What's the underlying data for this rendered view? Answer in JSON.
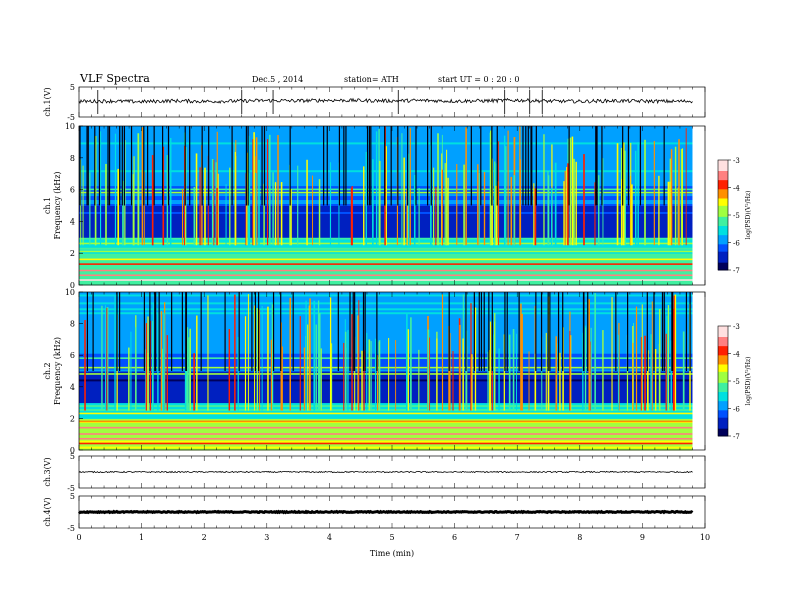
{
  "header": {
    "title": "VLF Spectra",
    "date": "Dec.5 , 2014",
    "station": "station= ATH",
    "start": "start UT = 0 : 20 : 0"
  },
  "chart_data": [
    {
      "type": "line",
      "ylabel": "ch.1(V)",
      "ylim": [
        -5,
        5
      ],
      "yticks": [
        "5",
        "-5"
      ],
      "x": [
        0,
        0.5,
        1,
        1.5,
        2,
        2.5,
        3,
        3.5,
        4,
        4.5,
        5,
        5.5,
        6,
        6.5,
        7,
        7.5,
        8,
        8.5,
        9,
        9.5,
        9.8
      ],
      "values": [
        0.2,
        0.3,
        0.1,
        0.4,
        0.2,
        0.3,
        0.5,
        0.4,
        0.6,
        0.5,
        0.4,
        0.5,
        0.3,
        0.4,
        0.6,
        0.3,
        0.2,
        0.4,
        0.3,
        0.2,
        0.3
      ],
      "color": "#000000"
    },
    {
      "type": "heatmap",
      "channel": "ch.1",
      "ylabel": "Frequency (kHz)",
      "ylim": [
        0,
        10
      ],
      "yticks": [
        "0",
        "2",
        "4",
        "6",
        "8",
        "10"
      ],
      "xlim": [
        0,
        10
      ],
      "data_xmax": 9.8,
      "colorbar": {
        "label": "log(PSD)(V²/Hz)",
        "range": [
          -7,
          -3
        ],
        "ticks": [
          "-3",
          "-4",
          "-5",
          "-6",
          "-7"
        ]
      },
      "notes": "broadband vertical sferics across full band; strong horizontal lines below 2 kHz"
    },
    {
      "type": "heatmap",
      "channel": "ch.2",
      "ylabel": "Frequency (kHz)",
      "ylim": [
        0,
        10
      ],
      "yticks": [
        "0",
        "2",
        "4",
        "6",
        "8",
        "10"
      ],
      "xlim": [
        0,
        10
      ],
      "data_xmax": 9.8,
      "colorbar": {
        "label": "log(PSD)(V²/Hz)",
        "range": [
          -7,
          -3
        ],
        "ticks": [
          "-3",
          "-4",
          "-5",
          "-6",
          "-7"
        ]
      },
      "notes": "broadband vertical sferics; elevated power below 2 kHz with red lines"
    },
    {
      "type": "line",
      "ylabel": "ch.3(V)",
      "ylim": [
        -5,
        5
      ],
      "yticks": [
        "5",
        "-5"
      ],
      "x": [
        0,
        1,
        2,
        3,
        4,
        5,
        6,
        7,
        8,
        9,
        9.8
      ],
      "values": [
        0,
        0,
        0,
        0,
        0,
        0,
        0,
        0,
        0,
        0,
        0
      ],
      "color": "#000000"
    },
    {
      "type": "line",
      "ylabel": "ch.4(V)",
      "ylim": [
        -5,
        5
      ],
      "yticks": [
        "5",
        "-5"
      ],
      "x": [
        0,
        1,
        2,
        3,
        4,
        5,
        6,
        7,
        8,
        9,
        9.8
      ],
      "values": [
        0,
        0,
        0,
        0,
        0,
        0,
        0,
        0,
        0,
        0,
        0
      ],
      "color": "#000000"
    }
  ],
  "xaxis": {
    "label": "Time (min)",
    "xlim": [
      0,
      10
    ],
    "ticks": [
      "0",
      "1",
      "2",
      "3",
      "4",
      "5",
      "6",
      "7",
      "8",
      "9",
      "10"
    ]
  },
  "colorbar_ylabel_ch1": "ch.1",
  "colorbar_ylabel_ch2": "ch.2",
  "colorscale": [
    "#00005a",
    "#0020c0",
    "#0050ff",
    "#00a0ff",
    "#00e0e0",
    "#40f0a0",
    "#a0ff40",
    "#ffff00",
    "#ff9000",
    "#ff2000",
    "#ff8080",
    "#ffe0e0"
  ]
}
